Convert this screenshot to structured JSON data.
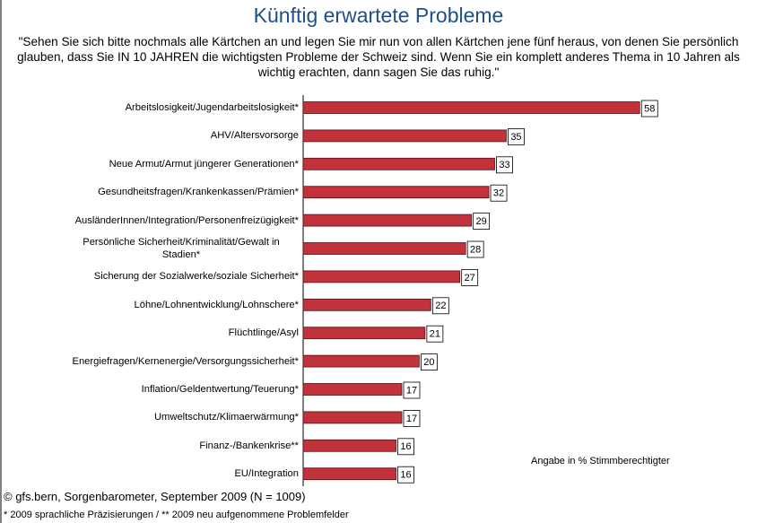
{
  "chart_data": {
    "type": "bar",
    "orientation": "horizontal",
    "title": "Künftig erwartete Probleme",
    "subtitle": "\"Sehen Sie sich bitte nochmals alle Kärtchen an und legen Sie mir nun von allen Kärtchen jene fünf heraus, von denen Sie persönlich glauben, dass Sie IN 10 JAHREN die wichtigsten Probleme der Schweiz sind. Wenn Sie ein komplett anderes Thema in 10 Jahren als wichtig erachten, dann sagen Sie das ruhig.\"",
    "categories": [
      "Arbeitslosigkeit/Jugendarbeitslosigkeit*",
      "AHV/Altersvorsorge",
      "Neue Armut/Armut jüngerer Generationen*",
      "Gesundheitsfragen/Krankenkassen/Prämien*",
      "AusländerInnen/Integration/Personenfreizügigkeit*",
      "Persönliche Sicherheit/Kriminalität/Gewalt in Stadien*",
      "Sicherung der Sozialwerke/soziale Sicherheit*",
      "Löhne/Lohnentwicklung/Lohnschere*",
      "Flüchtlinge/Asyl",
      "Energiefragen/Kernenergie/Versorgungssicherheit*",
      "Inflation/Geldentwertung/Teuerung*",
      "Umweltschutz/Klimaerwärmung*",
      "Finanz-/Bankenkrise**",
      "EU/Integration"
    ],
    "values": [
      58,
      35,
      33,
      32,
      29,
      28,
      27,
      22,
      21,
      20,
      17,
      17,
      16,
      16
    ],
    "color": "#c1323b",
    "note": "Angabe in % Stimmberechtigter",
    "source": "© gfs.bern, Sorgenbarometer, September 2009 (N = 1009)",
    "footnote": "* 2009 sprachliche Präzisierungen / ** 2009 neu aufgenommene Problemfelder"
  }
}
